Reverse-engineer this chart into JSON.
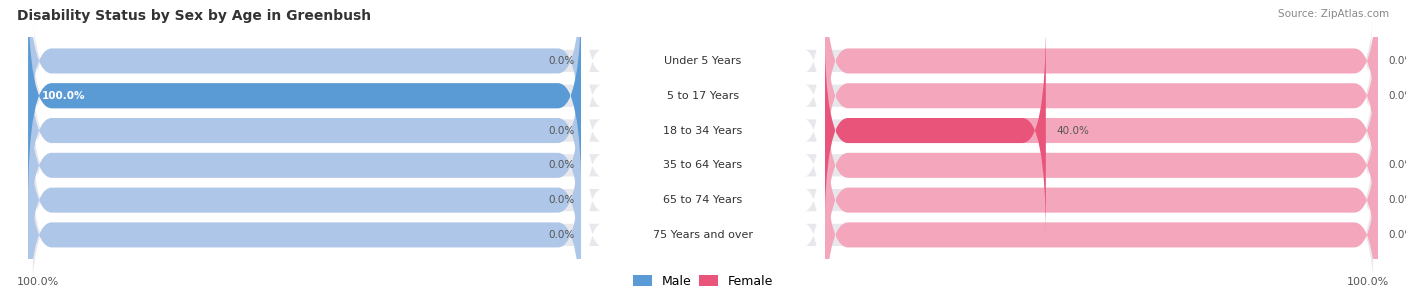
{
  "title": "Disability Status by Sex by Age in Greenbush",
  "source": "Source: ZipAtlas.com",
  "categories": [
    "Under 5 Years",
    "5 to 17 Years",
    "18 to 34 Years",
    "35 to 64 Years",
    "65 to 74 Years",
    "75 Years and over"
  ],
  "male_values": [
    0.0,
    100.0,
    0.0,
    0.0,
    0.0,
    0.0
  ],
  "female_values": [
    0.0,
    0.0,
    40.0,
    0.0,
    0.0,
    0.0
  ],
  "male_color_full": "#5b9bd5",
  "male_color_light": "#aec6e8",
  "female_color_full": "#e8547a",
  "female_color_light": "#f4a7bc",
  "bar_bg_color": "#e8e8ec",
  "male_label": "Male",
  "female_label": "Female",
  "max_val": 100.0,
  "left_axis_label": "100.0%",
  "right_axis_label": "100.0%",
  "label_value_color": "#555555",
  "label_100_color": "#ffffff"
}
